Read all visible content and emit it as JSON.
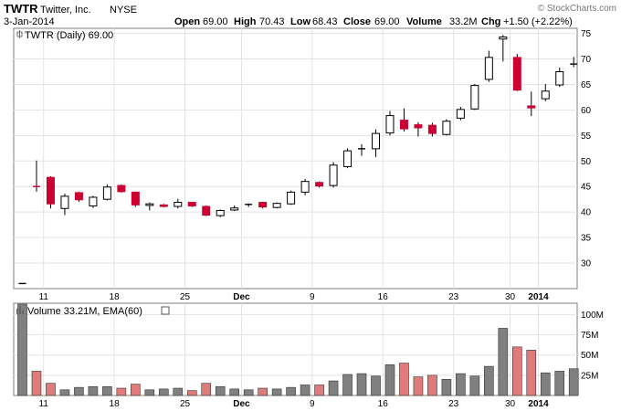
{
  "header": {
    "symbol": "TWTR",
    "company": "Twitter, Inc.",
    "exchange": "NYSE",
    "date": "3-Jan-2014",
    "watermark": "© StockCharts.com"
  },
  "quote": {
    "open_label": "Open",
    "open": "69.00",
    "high_label": "High",
    "high": "70.43",
    "low_label": "Low",
    "low": "68.43",
    "close_label": "Close",
    "close": "69.00",
    "volume_label": "Volume",
    "volume": "33.2M",
    "chg_label": "Chg",
    "chg": "+1.50 (+2.22%)"
  },
  "price_legend": "TWTR (Daily) 69.00",
  "volume_legend": "Volume 33.21M, EMA(60)",
  "colors": {
    "up": "#ffffff",
    "down": "#cc0033",
    "vol_up": "#808080",
    "vol_down": "#e07b7b",
    "grid": "#e3e3e3"
  },
  "chart_data": [
    {
      "type": "candlestick",
      "name": "price",
      "y_ticks": [
        30,
        35,
        40,
        45,
        50,
        55,
        60,
        65,
        70,
        75
      ],
      "ylim": [
        25,
        76
      ],
      "x_ticks": [
        {
          "label": "11",
          "index": 2,
          "bold": false
        },
        {
          "label": "18",
          "index": 7,
          "bold": false
        },
        {
          "label": "25",
          "index": 12,
          "bold": false
        },
        {
          "label": "Dec",
          "index": 16,
          "bold": true
        },
        {
          "label": "9",
          "index": 21,
          "bold": false
        },
        {
          "label": "16",
          "index": 26,
          "bold": false
        },
        {
          "label": "23",
          "index": 31,
          "bold": false
        },
        {
          "label": "30",
          "index": 35,
          "bold": false
        },
        {
          "label": "2014",
          "index": 37,
          "bold": true
        }
      ],
      "candles": [
        {
          "o": 26.0,
          "h": 26.0,
          "l": 26.0,
          "c": 26.0
        },
        {
          "o": 45.0,
          "h": 50.1,
          "l": 44.0,
          "c": 44.9
        },
        {
          "o": 46.8,
          "h": 47.0,
          "l": 40.7,
          "c": 41.6
        },
        {
          "o": 40.7,
          "h": 43.6,
          "l": 39.4,
          "c": 43.1
        },
        {
          "o": 43.8,
          "h": 44.0,
          "l": 42.0,
          "c": 42.4
        },
        {
          "o": 41.2,
          "h": 43.2,
          "l": 40.8,
          "c": 42.9
        },
        {
          "o": 42.5,
          "h": 45.4,
          "l": 42.3,
          "c": 44.9
        },
        {
          "o": 45.2,
          "h": 45.4,
          "l": 43.8,
          "c": 44.0
        },
        {
          "o": 43.9,
          "h": 44.0,
          "l": 41.0,
          "c": 41.4
        },
        {
          "o": 41.3,
          "h": 41.9,
          "l": 40.3,
          "c": 41.6
        },
        {
          "o": 41.4,
          "h": 41.6,
          "l": 40.9,
          "c": 41.1
        },
        {
          "o": 41.1,
          "h": 42.6,
          "l": 40.7,
          "c": 41.9
        },
        {
          "o": 41.9,
          "h": 42.0,
          "l": 41.0,
          "c": 41.2
        },
        {
          "o": 41.1,
          "h": 41.3,
          "l": 39.2,
          "c": 39.4
        },
        {
          "o": 39.3,
          "h": 40.5,
          "l": 39.0,
          "c": 40.3
        },
        {
          "o": 40.4,
          "h": 41.3,
          "l": 40.2,
          "c": 40.8
        },
        {
          "o": 41.3,
          "h": 41.7,
          "l": 41.0,
          "c": 41.5
        },
        {
          "o": 41.9,
          "h": 42.0,
          "l": 40.7,
          "c": 41.0
        },
        {
          "o": 40.9,
          "h": 41.9,
          "l": 40.7,
          "c": 41.7
        },
        {
          "o": 41.6,
          "h": 44.2,
          "l": 41.4,
          "c": 43.9
        },
        {
          "o": 43.9,
          "h": 46.5,
          "l": 43.3,
          "c": 46.0
        },
        {
          "o": 45.8,
          "h": 46.0,
          "l": 44.8,
          "c": 45.1
        },
        {
          "o": 45.2,
          "h": 49.8,
          "l": 44.8,
          "c": 49.2
        },
        {
          "o": 48.9,
          "h": 52.5,
          "l": 48.6,
          "c": 52.0
        },
        {
          "o": 52.2,
          "h": 53.3,
          "l": 51.0,
          "c": 52.4
        },
        {
          "o": 52.4,
          "h": 56.2,
          "l": 50.8,
          "c": 55.4
        },
        {
          "o": 55.5,
          "h": 59.8,
          "l": 55.0,
          "c": 58.9
        },
        {
          "o": 58.0,
          "h": 60.3,
          "l": 55.8,
          "c": 56.3
        },
        {
          "o": 57.1,
          "h": 57.6,
          "l": 54.8,
          "c": 56.5
        },
        {
          "o": 57.0,
          "h": 57.5,
          "l": 54.8,
          "c": 55.4
        },
        {
          "o": 55.2,
          "h": 58.2,
          "l": 55.0,
          "c": 57.8
        },
        {
          "o": 58.4,
          "h": 60.6,
          "l": 58.0,
          "c": 60.1
        },
        {
          "o": 60.2,
          "h": 65.1,
          "l": 60.0,
          "c": 64.8
        },
        {
          "o": 66.0,
          "h": 71.6,
          "l": 65.5,
          "c": 70.3
        },
        {
          "o": 73.9,
          "h": 74.7,
          "l": 69.5,
          "c": 74.3
        },
        {
          "o": 70.3,
          "h": 71.0,
          "l": 63.7,
          "c": 63.9
        },
        {
          "o": 60.8,
          "h": 63.6,
          "l": 58.8,
          "c": 60.4
        },
        {
          "o": 62.2,
          "h": 65.1,
          "l": 61.7,
          "c": 63.7
        },
        {
          "o": 64.9,
          "h": 68.3,
          "l": 64.5,
          "c": 67.5
        },
        {
          "o": 69.0,
          "h": 70.4,
          "l": 68.4,
          "c": 69.0
        }
      ]
    },
    {
      "type": "bar",
      "name": "volume",
      "y_ticks": [
        {
          "label": "25M",
          "value": 25
        },
        {
          "label": "50M",
          "value": 50
        },
        {
          "label": "75M",
          "value": 75
        },
        {
          "label": "100M",
          "value": 100
        }
      ],
      "ylim": [
        0,
        114
      ],
      "values": [
        117,
        30,
        15,
        7,
        10,
        11,
        11,
        9,
        14,
        7,
        8,
        9,
        6,
        15,
        11,
        8,
        7,
        9,
        8,
        10,
        13,
        13,
        18,
        26,
        27,
        24,
        38,
        40,
        23,
        25,
        20,
        27,
        24,
        36,
        83,
        60,
        56,
        28,
        30,
        33
      ],
      "down": [
        false,
        true,
        true,
        false,
        false,
        false,
        false,
        true,
        true,
        false,
        false,
        false,
        true,
        true,
        false,
        false,
        false,
        true,
        false,
        false,
        false,
        true,
        false,
        false,
        false,
        false,
        false,
        true,
        true,
        true,
        false,
        false,
        false,
        false,
        false,
        true,
        true,
        false,
        false,
        false
      ]
    }
  ]
}
